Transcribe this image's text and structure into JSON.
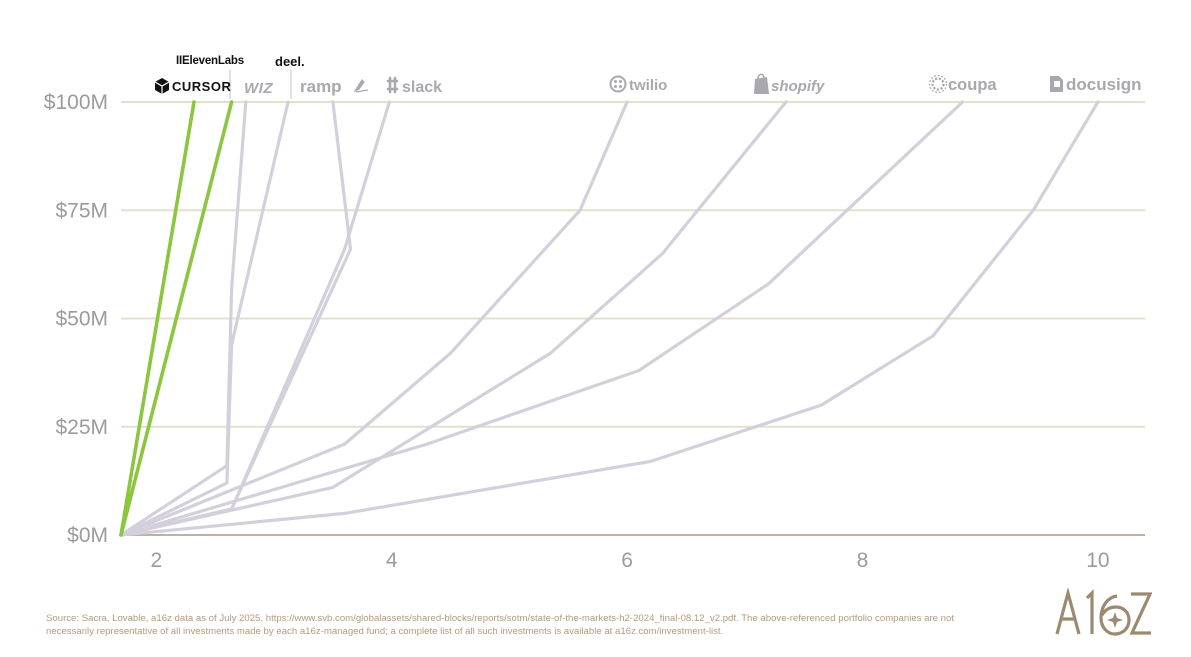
{
  "chart_data": {
    "type": "line",
    "ylabel": "",
    "xlabel": "",
    "yticks": [
      "$0M",
      "$25M",
      "$50M",
      "$75M",
      "$100M"
    ],
    "ytick_values": [
      0,
      25,
      50,
      75,
      100
    ],
    "xticks": [
      "2",
      "4",
      "6",
      "8",
      "10"
    ],
    "xtick_values": [
      2,
      4,
      6,
      8,
      10
    ],
    "xlim": [
      1.7,
      10.4
    ],
    "ylim": [
      0,
      100
    ],
    "grid": "horizontal",
    "colors": {
      "highlight": "#8cc63f",
      "other": "#d3d0dc",
      "grid": "#e6dfcb",
      "axis": "#bdb2a0"
    },
    "series": [
      {
        "name": "CURSOR",
        "highlight": true,
        "x": [
          1.7,
          2.32
        ],
        "y": [
          0,
          100
        ]
      },
      {
        "name": "IIElevenLabs",
        "highlight": true,
        "x": [
          1.7,
          2.64
        ],
        "y": [
          0,
          100
        ]
      },
      {
        "name": "WIZ",
        "highlight": false,
        "x": [
          1.7,
          2.6,
          2.64,
          2.76
        ],
        "y": [
          0,
          16,
          57,
          100
        ]
      },
      {
        "name": "deel.",
        "highlight": false,
        "x": [
          1.7,
          2.6,
          2.64,
          3.12
        ],
        "y": [
          0,
          12,
          44,
          100
        ]
      },
      {
        "name": "ramp",
        "highlight": false,
        "x": [
          1.7,
          2.64,
          3.65,
          3.5
        ],
        "y": [
          0,
          6,
          66,
          100
        ]
      },
      {
        "name": "slack",
        "highlight": false,
        "x": [
          1.7,
          2.64,
          3.6,
          3.98
        ],
        "y": [
          0,
          6,
          66,
          100
        ]
      },
      {
        "name": "twilio",
        "highlight": false,
        "x": [
          1.7,
          3.6,
          4.5,
          5.6,
          6.0
        ],
        "y": [
          0,
          21,
          42,
          75,
          100
        ]
      },
      {
        "name": "shopify",
        "highlight": false,
        "x": [
          1.7,
          3.5,
          5.35,
          6.3,
          7.35
        ],
        "y": [
          0,
          11,
          42,
          65,
          100
        ]
      },
      {
        "name": "coupa",
        "highlight": false,
        "x": [
          1.7,
          4.3,
          6.1,
          7.2,
          8.85
        ],
        "y": [
          0,
          21,
          38,
          58,
          100
        ]
      },
      {
        "name": "docusign",
        "highlight": false,
        "x": [
          1.7,
          3.6,
          6.2,
          7.65,
          8.6,
          9.45,
          10.0
        ],
        "y": [
          0,
          5,
          17,
          30,
          46,
          75,
          100
        ]
      }
    ],
    "logos": [
      {
        "name": "CURSOR",
        "icon": "cube-icon"
      },
      {
        "name": "IIElevenLabs",
        "icon": ""
      },
      {
        "name": "WIZ",
        "icon": ""
      },
      {
        "name": "deel.",
        "icon": ""
      },
      {
        "name": "ramp",
        "icon": "ramp-icon"
      },
      {
        "name": "slack",
        "icon": "slack-icon"
      },
      {
        "name": "twilio",
        "icon": "twilio-icon"
      },
      {
        "name": "shopify",
        "icon": "shopping-bag-icon"
      },
      {
        "name": "coupa",
        "icon": "coupa-icon"
      },
      {
        "name": "docusign",
        "icon": "docusign-icon"
      }
    ]
  },
  "footer": {
    "source_note": "Source: Sacra, Lovable, a16z data as of July 2025. https://www.svb.com/globalassets/shared-blocks/reports/sotm/state-of-the-markets-h2-2024_final-08.12_v2.pdf. The above-referenced portfolio companies are not necessarily representative of all investments made by each a16z-managed fund; a complete list of all such investments is available at a16z.com/investment-list.",
    "brand": "A16Z",
    "brand_color": "#9c8a70"
  }
}
